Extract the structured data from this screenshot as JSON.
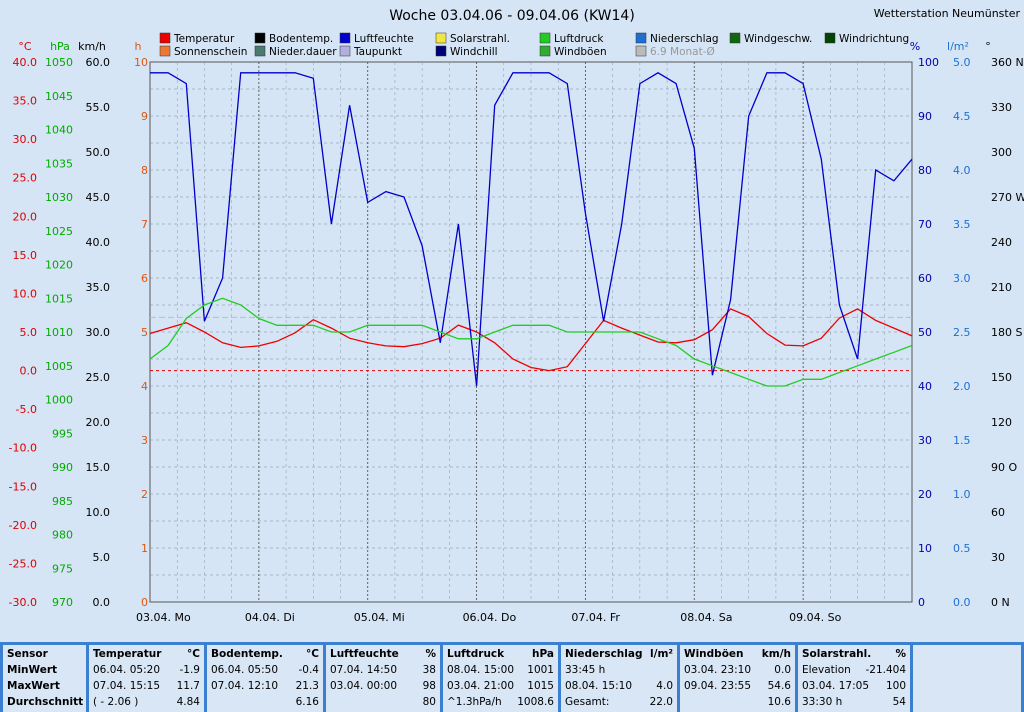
{
  "chart_data": {
    "type": "line",
    "title": "Woche 03.04.06 - 09.04.06 (KW14)",
    "station": "Wetterstation Neumünster",
    "legend": [
      {
        "name": "Temperatur",
        "color": "#ee0000"
      },
      {
        "name": "Bodentemp.",
        "color": "#000000"
      },
      {
        "name": "Luftfeuchte",
        "color": "#0000cc"
      },
      {
        "name": "Solarstrahl.",
        "color": "#f2e640"
      },
      {
        "name": "Luftdruck",
        "color": "#22cc22"
      },
      {
        "name": "Niederschlag",
        "color": "#1e6fd0"
      },
      {
        "name": "Windgeschw.",
        "color": "#116611"
      },
      {
        "name": "Windrichtung",
        "color": "#004400"
      },
      {
        "name": "Sonnenschein",
        "color": "#ee7733"
      },
      {
        "name": "Nieder.dauer",
        "color": "#4a7a70"
      },
      {
        "name": "Taupunkt",
        "color": "#b0b0e0"
      },
      {
        "name": "Windchill",
        "color": "#000077"
      },
      {
        "name": "Windböen",
        "color": "#33aa33"
      },
      {
        "name": "6.9 Monat-Ø",
        "color": "#bbbbbb"
      }
    ],
    "x_labels": [
      "03.04. Mo",
      "04.04. Di",
      "05.04. Mi",
      "06.04. Do",
      "07.04. Fr",
      "08.04. Sa",
      "09.04. So"
    ],
    "axes": {
      "temp": {
        "unit": "°C",
        "ticks": [
          "40.0",
          "35.0",
          "30.0",
          "25.0",
          "20.0",
          "15.0",
          "10.0",
          "5.0",
          "0.0",
          "-5.0",
          "-10.0",
          "-15.0",
          "-20.0",
          "-25.0",
          "-30.0"
        ],
        "color": "#dd0000"
      },
      "pressure": {
        "unit": "hPa",
        "ticks": [
          "1050",
          "1045",
          "1040",
          "1035",
          "1030",
          "1025",
          "1020",
          "1015",
          "1010",
          "1005",
          "1000",
          "995",
          "990",
          "985",
          "980",
          "975",
          "970"
        ],
        "color": "#00aa00"
      },
      "wind_speed": {
        "unit": "km/h",
        "ticks": [
          "60.0",
          "55.0",
          "50.0",
          "45.0",
          "40.0",
          "35.0",
          "30.0",
          "25.0",
          "20.0",
          "15.0",
          "10.0",
          "5.0",
          "0.0"
        ],
        "color": "#000000"
      },
      "sunshine": {
        "unit": "h",
        "ticks": [
          "10",
          "9",
          "8",
          "7",
          "6",
          "5",
          "4",
          "3",
          "2",
          "1",
          "0"
        ],
        "color": "#dd5511"
      },
      "humidity": {
        "unit": "%",
        "ticks": [
          "100",
          "90",
          "80",
          "70",
          "60",
          "50",
          "40",
          "30",
          "20",
          "10",
          "0"
        ],
        "color": "#0000aa"
      },
      "rain": {
        "unit": "l/m²",
        "ticks": [
          "5.0",
          "4.5",
          "4.0",
          "3.5",
          "3.0",
          "2.5",
          "2.0",
          "1.5",
          "1.0",
          "0.5",
          "0.0"
        ],
        "color": "#1e6fd0"
      },
      "direction": {
        "unit": "°",
        "ticks": [
          "360 N",
          "330",
          "300",
          "270 W",
          "240",
          "210",
          "180 S",
          "150",
          "120",
          "90 O",
          "60",
          "30",
          "0 N"
        ],
        "color": "#000000"
      }
    },
    "series": [
      {
        "name": "Temperatur",
        "unit": "°C",
        "values": [
          4.8,
          5.5,
          6.2,
          5.0,
          3.6,
          3.0,
          3.2,
          3.8,
          4.9,
          6.6,
          5.5,
          4.2,
          3.6,
          3.2,
          3.1,
          3.5,
          4.2,
          5.9,
          5.0,
          3.6,
          1.5,
          0.4,
          0.0,
          0.5,
          3.5,
          6.5,
          5.5,
          4.6,
          3.7,
          3.6,
          4.0,
          5.3,
          8.0,
          7.0,
          4.8,
          3.3,
          3.2,
          4.2,
          6.8,
          8.0,
          6.5,
          5.5,
          4.5
        ]
      },
      {
        "name": "Luftfeuchte",
        "unit": "%",
        "values": [
          98,
          98,
          96,
          52,
          60,
          98,
          98,
          98,
          98,
          97,
          70,
          92,
          74,
          76,
          75,
          66,
          48,
          70,
          40,
          92,
          98,
          98,
          98,
          96,
          72,
          52,
          70,
          96,
          98,
          96,
          84,
          42,
          56,
          90,
          98,
          98,
          96,
          82,
          55,
          45,
          80,
          78,
          82
        ]
      },
      {
        "name": "Luftdruck",
        "unit": "hPa",
        "values": [
          1006,
          1008,
          1012,
          1014,
          1015,
          1014,
          1012,
          1011,
          1011,
          1011,
          1010,
          1010,
          1011,
          1011,
          1011,
          1011,
          1010,
          1009,
          1009,
          1010,
          1011,
          1011,
          1011,
          1010,
          1010,
          1010,
          1010,
          1010,
          1009,
          1008,
          1006,
          1005,
          1004,
          1003,
          1002,
          1002,
          1003,
          1003,
          1004,
          1005,
          1006,
          1007,
          1008
        ]
      }
    ],
    "stats": {
      "headers": {
        "sensor": "Sensor",
        "min": "MinWert",
        "max": "MaxWert",
        "avg": "Durchschnitt"
      },
      "blocks": [
        {
          "name": "Temperatur",
          "unit": "°C",
          "rows": [
            [
              "06.04.  05:20",
              "-1.9"
            ],
            [
              "07.04.  15:15",
              "11.7"
            ],
            [
              "( - 2.06 )",
              "4.84"
            ]
          ]
        },
        {
          "name": "Bodentemp.",
          "unit": "°C",
          "rows": [
            [
              "06.04.  05:50",
              "-0.4"
            ],
            [
              "07.04.  12:10",
              "21.3"
            ],
            [
              "",
              "6.16"
            ]
          ]
        },
        {
          "name": "Luftfeuchte",
          "unit": "%",
          "rows": [
            [
              "07.04.  14:50",
              "38"
            ],
            [
              "03.04.  00:00",
              "98"
            ],
            [
              "",
              "80"
            ]
          ]
        },
        {
          "name": "Luftdruck",
          "unit": "hPa",
          "rows": [
            [
              "08.04.  15:00",
              "1001"
            ],
            [
              "03.04.  21:00",
              "1015"
            ],
            [
              "^1.3hPa/h",
              "1008.6"
            ]
          ]
        },
        {
          "name": "Niederschlag",
          "unit": "l/m²",
          "rows": [
            [
              "33:45 h",
              ""
            ],
            [
              "08.04.  15:10",
              "4.0"
            ],
            [
              "Gesamt:",
              "22.0"
            ]
          ]
        },
        {
          "name": "Windböen",
          "unit": "km/h",
          "rows": [
            [
              "03.04.  23:10",
              "0.0"
            ],
            [
              "09.04.  23:55",
              "54.6"
            ],
            [
              "",
              "10.6"
            ]
          ]
        },
        {
          "name": "Solarstrahl.",
          "unit": "%",
          "rows": [
            [
              "Elevation",
              "-21.404"
            ],
            [
              "03.04.  17:05",
              "100"
            ],
            [
              "33:30 h",
              "54"
            ]
          ]
        }
      ]
    }
  }
}
